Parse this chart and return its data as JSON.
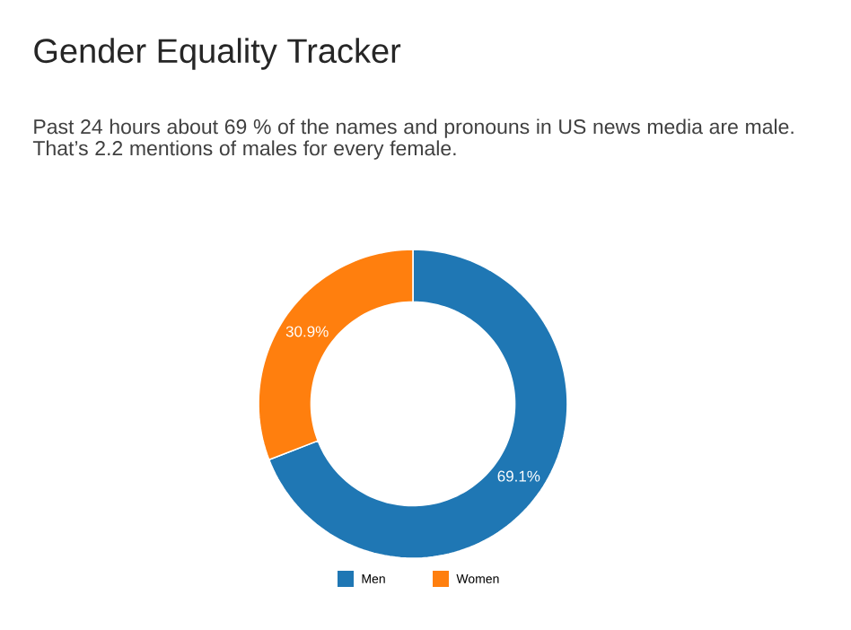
{
  "chart_data": {
    "type": "donut",
    "title": "Gender Equality Tracker",
    "subtitle": "Past 24 hours about 69 % of the names and pronouns in US news media are male. That’s 2.2 mentions of males for every female.",
    "categories": [
      "Men",
      "Women"
    ],
    "values": [
      69.1,
      30.9
    ],
    "colors": [
      "#1f77b4",
      "#ff7f0e"
    ],
    "value_labels": [
      "69.1%",
      "30.9%"
    ],
    "legend": "bottom"
  }
}
